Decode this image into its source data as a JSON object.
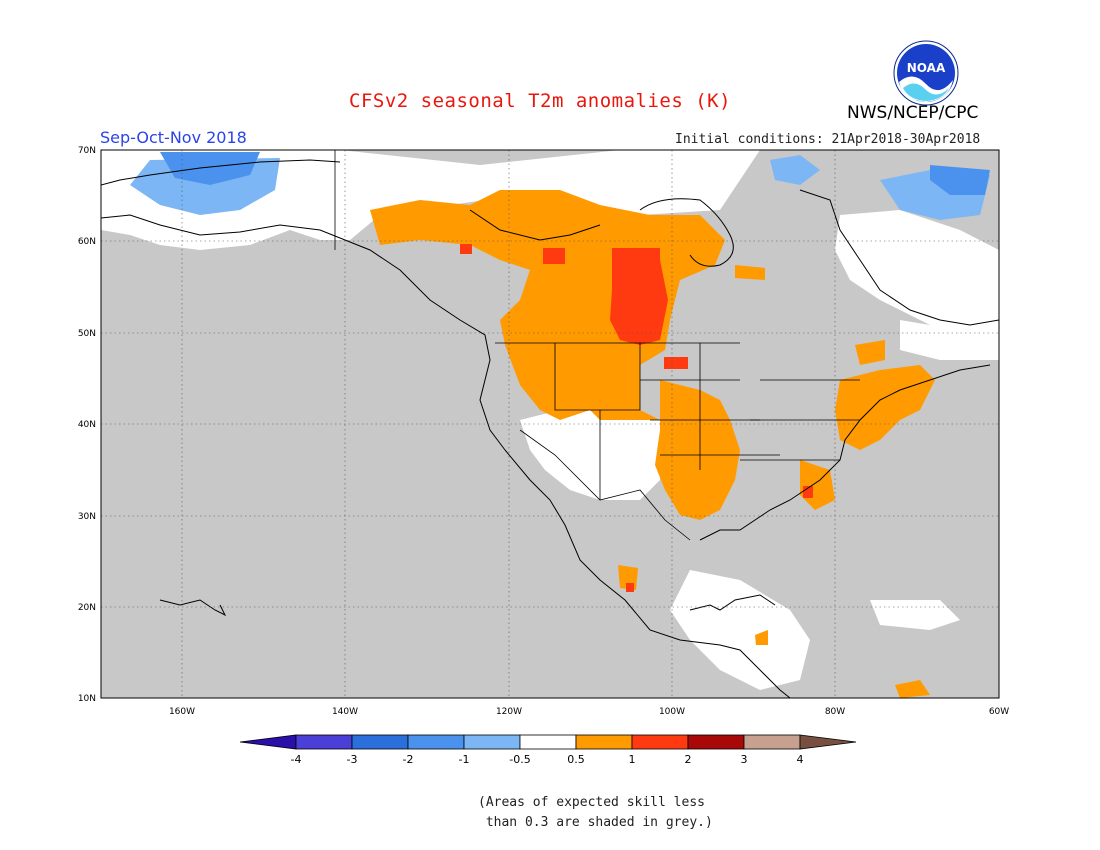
{
  "title": "CFSv2 seasonal T2m anomalies (K)",
  "organization": "NWS/NCEP/CPC",
  "logo_text": "NOAA",
  "period": "Sep-Oct-Nov 2018",
  "initial_conditions": "Initial conditions: 21Apr2018-30Apr2018",
  "note_line1": "(Areas of expected skill less",
  "note_line2": " than 0.3 are shaded in grey.)",
  "map": {
    "lon_range": [
      -170,
      -60
    ],
    "lat_range": [
      10,
      70
    ],
    "lat_labels": [
      "70N",
      "60N",
      "50N",
      "40N",
      "30N",
      "20N",
      "10N"
    ],
    "lon_labels": [
      "160W",
      "140W",
      "120W",
      "100W",
      "80W",
      "60W"
    ],
    "grid": "dotted",
    "mask_color": "#c8c8c8",
    "ocean_color": "#c8c8c8"
  },
  "colorbar": {
    "ticks": [
      "-4",
      "-3",
      "-2",
      "-1",
      "-0.5",
      "0.5",
      "1",
      "2",
      "3",
      "4"
    ],
    "colors": [
      "#2a0fa8",
      "#4a3fd6",
      "#2a6fdc",
      "#4a92ee",
      "#7cb6f4",
      "#ffffff",
      "#ff9a00",
      "#ff3a10",
      "#a80808",
      "#c8a090",
      "#785040"
    ]
  },
  "anomaly_regions": [
    {
      "name": "Canadian Prairies / Northern Plains",
      "category": "0.5 to 1"
    },
    {
      "name": "Manitoba / Western Ontario",
      "category": "1 to 2"
    },
    {
      "name": "Northeast US",
      "category": "0.5 to 1"
    },
    {
      "name": "Southern Plains",
      "category": "0.5 to 1"
    },
    {
      "name": "Alaska North Slope",
      "category": "-1 to -0.5"
    },
    {
      "name": "Northern Quebec / Labrador coast",
      "category": "-1 to -0.5"
    }
  ]
}
